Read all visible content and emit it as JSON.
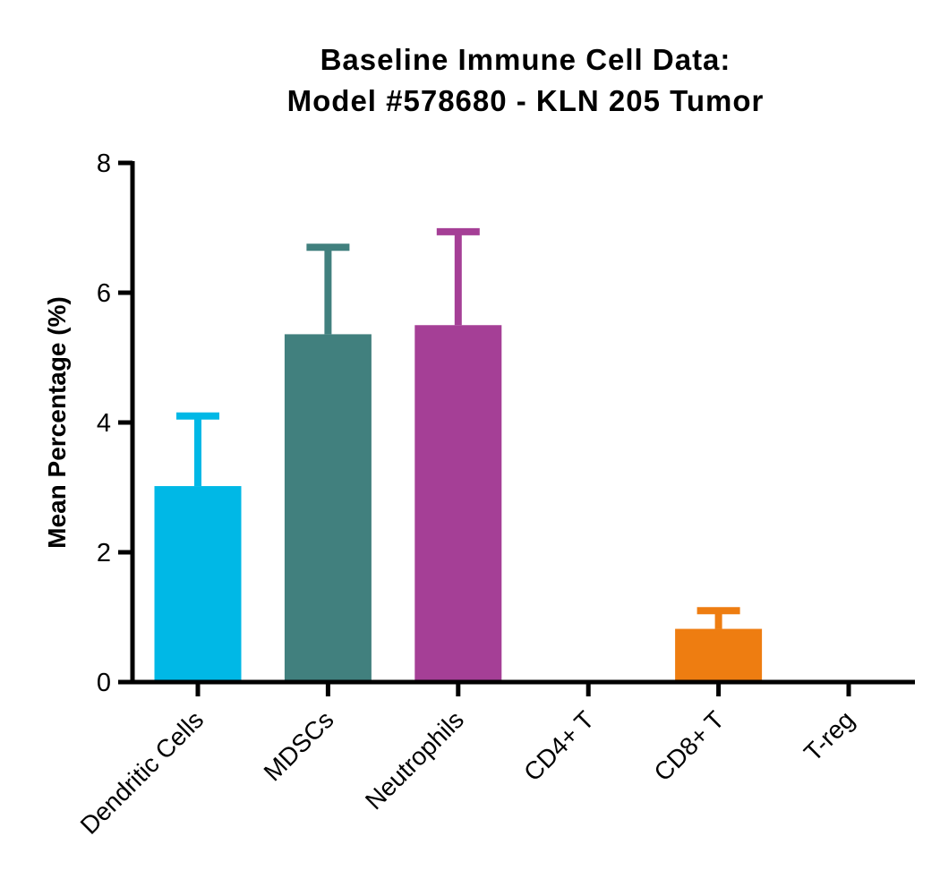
{
  "chart_data": {
    "type": "bar",
    "title_line1": "Baseline Immune  Cell Data:",
    "title_line2": "Model #578680 - KLN 205 Tumor",
    "xlabel": "",
    "ylabel": "Mean Percentage (%)",
    "ylim": [
      0,
      8
    ],
    "yticks": [
      "0",
      "2",
      "4",
      "6",
      "8"
    ],
    "categories": [
      "Dendritic Cells",
      "MDSCs",
      "Neutrophils",
      "CD4+ T",
      "CD8+ T",
      "T-reg"
    ],
    "values": [
      3.02,
      5.36,
      5.5,
      0,
      0.82,
      0
    ],
    "error_upper": [
      4.1,
      6.7,
      6.94,
      0,
      1.1,
      0
    ],
    "colors": [
      "#00b8e6",
      "#41807e",
      "#a53f96",
      "#000000",
      "#ee7d11",
      "#000000"
    ],
    "grid": false,
    "legend": "none"
  }
}
